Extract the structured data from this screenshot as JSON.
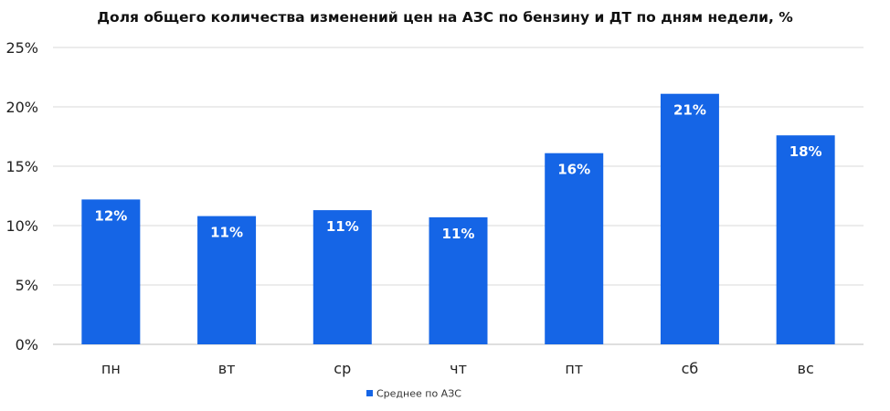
{
  "chart_data": {
    "type": "bar",
    "title": "Доля общего количества изменений цен на АЗС по бензину и ДТ по дням недели, %",
    "categories": [
      "пн",
      "вт",
      "ср",
      "чт",
      "пт",
      "сб",
      "вс"
    ],
    "series": [
      {
        "name": "Среднее по АЗС",
        "values": [
          12.2,
          10.8,
          11.3,
          10.7,
          16.1,
          21.1,
          17.6
        ],
        "data_labels": [
          "12%",
          "11%",
          "11%",
          "11%",
          "16%",
          "21%",
          "18%"
        ]
      }
    ],
    "yticks": [
      "0%",
      "5%",
      "10%",
      "15%",
      "20%",
      "25%"
    ],
    "ylim": [
      0,
      25
    ],
    "xlabel": "",
    "ylabel": "",
    "grid": true,
    "legend": "bottom-center"
  },
  "colors": {
    "bar": "#1565e6",
    "grid": "#d9d9d9",
    "axis": "#bfbfbf"
  }
}
